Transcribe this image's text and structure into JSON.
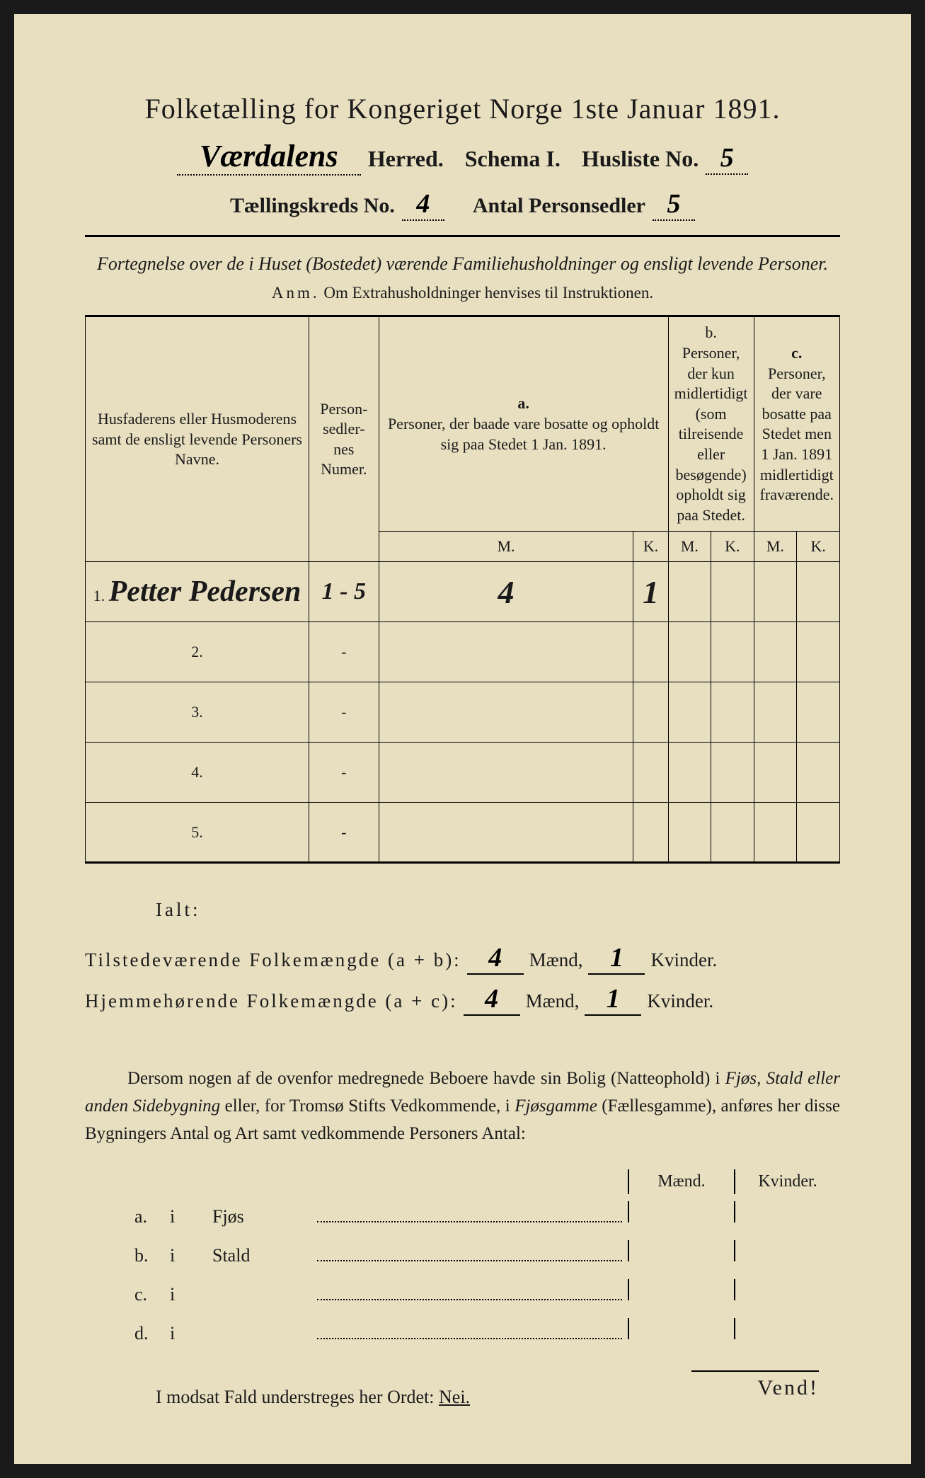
{
  "header": {
    "title_line1": "Folketælling for Kongeriget Norge 1ste Januar 1891.",
    "herred_value": "Værdalens",
    "herred_label": "Herred.",
    "schema_label": "Schema I.",
    "husliste_label": "Husliste No.",
    "husliste_value": "5",
    "taelling_label": "Tællingskreds No.",
    "taelling_value": "4",
    "antal_label": "Antal Personsedler",
    "antal_value": "5"
  },
  "subtitle": {
    "text": "Fortegnelse over de i Huset (Bostedet) værende Familiehusholdninger og ensligt levende Personer.",
    "anm_label": "Anm.",
    "anm_text": "Om Extrahusholdninger henvises til Instruktionen."
  },
  "table": {
    "col_names": "Husfaderens eller Husmoderens samt de ensligt levende Personers Navne.",
    "col_numer": "Person-sedler-nes Numer.",
    "col_a_label": "a.",
    "col_a_text": "Personer, der baade vare bosatte og opholdt sig paa Stedet 1 Jan. 1891.",
    "col_b_label": "b.",
    "col_b_text": "Personer, der kun midlertidigt (som tilreisende eller besøgende) opholdt sig paa Stedet.",
    "col_c_label": "c.",
    "col_c_text": "Personer, der vare bosatte paa Stedet men 1 Jan. 1891 midlertidigt fraværende.",
    "m": "M.",
    "k": "K.",
    "rows": [
      {
        "num": "1.",
        "name": "Petter Pedersen",
        "numer": "1 - 5",
        "a_m": "4",
        "a_k": "1",
        "b_m": "",
        "b_k": "",
        "c_m": "",
        "c_k": ""
      },
      {
        "num": "2.",
        "name": "",
        "numer": "-",
        "a_m": "",
        "a_k": "",
        "b_m": "",
        "b_k": "",
        "c_m": "",
        "c_k": ""
      },
      {
        "num": "3.",
        "name": "",
        "numer": "-",
        "a_m": "",
        "a_k": "",
        "b_m": "",
        "b_k": "",
        "c_m": "",
        "c_k": ""
      },
      {
        "num": "4.",
        "name": "",
        "numer": "-",
        "a_m": "",
        "a_k": "",
        "b_m": "",
        "b_k": "",
        "c_m": "",
        "c_k": ""
      },
      {
        "num": "5.",
        "name": "",
        "numer": "-",
        "a_m": "",
        "a_k": "",
        "b_m": "",
        "b_k": "",
        "c_m": "",
        "c_k": ""
      }
    ]
  },
  "ialt": {
    "label": "Ialt:",
    "tilstede_label": "Tilstedeværende Folkemængde (a + b):",
    "tilstede_m": "4",
    "tilstede_k": "1",
    "hjemme_label": "Hjemmehørende Folkemængde (a + c):",
    "hjemme_m": "4",
    "hjemme_k": "1",
    "maend": "Mænd,",
    "kvinder": "Kvinder."
  },
  "dersom": {
    "text": "Dersom nogen af de ovenfor medregnede Beboere havde sin Bolig (Natteophold) i Fjøs, Stald eller anden Sidebygning eller, for Tromsø Stifts Vedkommende, i Fjøsgamme (Fællesgamme), anføres her disse Bygningers Antal og Art samt vedkommende Personers Antal:"
  },
  "buildings": {
    "header_maend": "Mænd.",
    "header_kvinder": "Kvinder.",
    "rows": [
      {
        "label": "a.",
        "i": "i",
        "name": "Fjøs"
      },
      {
        "label": "b.",
        "i": "i",
        "name": "Stald"
      },
      {
        "label": "c.",
        "i": "i",
        "name": ""
      },
      {
        "label": "d.",
        "i": "i",
        "name": ""
      }
    ]
  },
  "modsat": {
    "text": "I modsat Fald understreges her Ordet:",
    "nei": "Nei."
  },
  "vend": "Vend!"
}
